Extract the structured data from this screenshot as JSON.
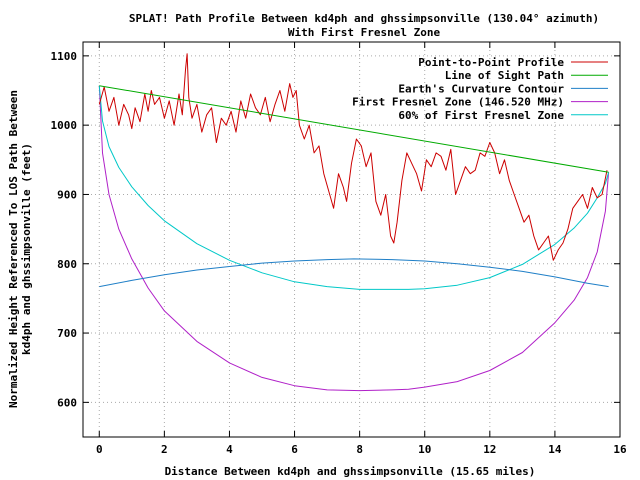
{
  "chart_data": {
    "type": "line",
    "title": "SPLAT! Path Profile Between kd4ph and ghssimpsonville (130.04° azimuth)",
    "subtitle": "With First Fresnel Zone",
    "xlabel": "Distance Between kd4ph and ghssimpsonville (15.65 miles)",
    "ylabel_lines": [
      "Normalized Height Referenced To LOS Path Between",
      "kd4ph and ghssimpsonville (feet)"
    ],
    "xlim": [
      -0.5,
      16
    ],
    "ylim": [
      550,
      1120
    ],
    "x_ticks": [
      "0",
      "2",
      "4",
      "6",
      "8",
      "10",
      "12",
      "14",
      "16"
    ],
    "y_ticks": [
      "600",
      "700",
      "800",
      "900",
      "1000",
      "1100"
    ],
    "grid": true,
    "legend_position": "top-right",
    "series": [
      {
        "name": "Point-to-Point Profile",
        "color": "#cc0000",
        "x": [
          0,
          0.15,
          0.3,
          0.45,
          0.6,
          0.75,
          0.9,
          1.0,
          1.1,
          1.25,
          1.4,
          1.5,
          1.6,
          1.7,
          1.85,
          2.0,
          2.15,
          2.3,
          2.45,
          2.55,
          2.65,
          2.7,
          2.75,
          2.85,
          3.0,
          3.15,
          3.3,
          3.45,
          3.6,
          3.75,
          3.9,
          4.05,
          4.2,
          4.35,
          4.5,
          4.65,
          4.8,
          4.95,
          5.1,
          5.25,
          5.4,
          5.55,
          5.7,
          5.85,
          5.95,
          6.05,
          6.15,
          6.3,
          6.45,
          6.6,
          6.75,
          6.9,
          7.05,
          7.2,
          7.35,
          7.5,
          7.6,
          7.75,
          7.9,
          8.05,
          8.2,
          8.35,
          8.5,
          8.65,
          8.8,
          8.95,
          9.05,
          9.15,
          9.3,
          9.45,
          9.6,
          9.75,
          9.9,
          10.05,
          10.2,
          10.35,
          10.5,
          10.65,
          10.8,
          10.95,
          11.1,
          11.25,
          11.4,
          11.55,
          11.7,
          11.85,
          12.0,
          12.15,
          12.3,
          12.45,
          12.6,
          12.75,
          12.9,
          13.05,
          13.2,
          13.35,
          13.5,
          13.65,
          13.8,
          13.95,
          14.1,
          14.25,
          14.4,
          14.55,
          14.7,
          14.85,
          15.0,
          15.15,
          15.3,
          15.45,
          15.6
        ],
        "y": [
          1030,
          1055,
          1020,
          1040,
          1000,
          1030,
          1015,
          995,
          1025,
          1005,
          1045,
          1020,
          1050,
          1030,
          1040,
          1010,
          1035,
          1000,
          1045,
          1015,
          1080,
          1103,
          1040,
          1010,
          1030,
          990,
          1015,
          1025,
          975,
          1010,
          1000,
          1020,
          990,
          1035,
          1010,
          1045,
          1025,
          1015,
          1040,
          1005,
          1030,
          1050,
          1020,
          1060,
          1040,
          1050,
          1000,
          980,
          1000,
          960,
          970,
          930,
          905,
          880,
          930,
          910,
          890,
          945,
          980,
          970,
          940,
          960,
          890,
          870,
          900,
          840,
          830,
          860,
          920,
          960,
          945,
          930,
          905,
          950,
          940,
          960,
          955,
          935,
          965,
          900,
          920,
          940,
          930,
          935,
          960,
          955,
          975,
          960,
          930,
          950,
          920,
          900,
          880,
          860,
          870,
          840,
          820,
          830,
          840,
          805,
          820,
          830,
          850,
          880,
          890,
          900,
          880,
          910,
          895,
          900,
          935
        ]
      },
      {
        "name": "Line of Sight Path",
        "color": "#00aa00",
        "x": [
          0,
          15.65
        ],
        "y": [
          1057,
          932
        ]
      },
      {
        "name": "Earth's Curvature Contour",
        "color": "#1f7fc7",
        "x": [
          0,
          1,
          2,
          3,
          4,
          5,
          6,
          7,
          7.825,
          9,
          10,
          11,
          12,
          13,
          14,
          15,
          15.65
        ],
        "y": [
          767,
          776,
          784,
          791,
          796,
          801,
          804,
          806,
          807,
          806,
          804,
          800,
          795,
          789,
          781,
          772,
          767
        ]
      },
      {
        "name": "First Fresnel Zone (146.520 MHz)",
        "color": "#b020c8",
        "x": [
          0,
          0.1,
          0.3,
          0.6,
          1,
          1.5,
          2,
          3,
          4,
          5,
          6,
          7,
          8,
          9,
          9.5,
          10,
          11,
          12,
          13,
          14,
          14.6,
          15,
          15.3,
          15.55,
          15.65
        ],
        "y": [
          1057,
          960,
          900,
          850,
          807,
          765,
          732,
          688,
          657,
          636,
          624,
          618,
          617,
          618,
          619,
          622,
          630,
          646,
          672,
          715,
          748,
          780,
          817,
          876,
          932
        ]
      },
      {
        "name": "60% of First Fresnel Zone",
        "color": "#00c8c8",
        "x": [
          0,
          0.1,
          0.3,
          0.6,
          1,
          1.5,
          2,
          3,
          4,
          5,
          6,
          7,
          8,
          9,
          9.5,
          10,
          11,
          12,
          13,
          14,
          14.6,
          15,
          15.3,
          15.55,
          15.65
        ],
        "y": [
          1057,
          1006,
          969,
          939,
          911,
          884,
          862,
          829,
          805,
          787,
          774,
          767,
          763,
          763,
          763,
          764,
          769,
          780,
          799,
          828,
          852,
          873,
          895,
          916,
          932
        ]
      }
    ]
  }
}
